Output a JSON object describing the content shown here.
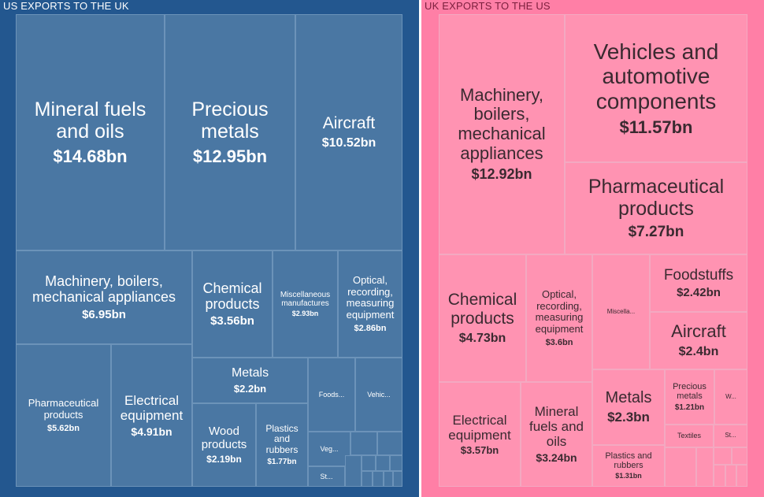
{
  "colors": {
    "us_background": "#23578f",
    "us_cell": "#4a77a3",
    "uk_background": "#ff7fa6",
    "uk_cell": "#ff93b2"
  },
  "chart_data": [
    {
      "type": "treemap",
      "title": "US EXPORTS TO THE UK",
      "items": [
        {
          "label": "Mineral fuels and oils",
          "value": 14.68,
          "value_label": "$14.68bn"
        },
        {
          "label": "Precious metals",
          "value": 12.95,
          "value_label": "$12.95bn"
        },
        {
          "label": "Aircraft",
          "value": 10.52,
          "value_label": "$10.52bn"
        },
        {
          "label": "Machinery, boilers, mechanical appliances",
          "value": 6.95,
          "value_label": "$6.95bn"
        },
        {
          "label": "Chemical products",
          "value": 3.56,
          "value_label": "$3.56bn"
        },
        {
          "label": "Miscellaneous manufactures",
          "value": 2.93,
          "value_label": "$2.93bn"
        },
        {
          "label": "Optical, recording, measuring equipment",
          "value": 2.86,
          "value_label": "$2.86bn"
        },
        {
          "label": "Pharmaceutical products",
          "value": 5.62,
          "value_label": "$5.62bn"
        },
        {
          "label": "Electrical equipment",
          "value": 4.91,
          "value_label": "$4.91bn"
        },
        {
          "label": "Metals",
          "value": 2.2,
          "value_label": "$2.2bn"
        },
        {
          "label": "Wood products",
          "value": 2.19,
          "value_label": "$2.19bn"
        },
        {
          "label": "Plastics and rubbers",
          "value": 1.77,
          "value_label": "$1.77bn"
        },
        {
          "label": "Foods...",
          "value": null,
          "value_label": ""
        },
        {
          "label": "Vehic...",
          "value": null,
          "value_label": ""
        },
        {
          "label": "Veg...",
          "value": null,
          "value_label": ""
        },
        {
          "label": "St...",
          "value": null,
          "value_label": ""
        }
      ]
    },
    {
      "type": "treemap",
      "title": "UK EXPORTS TO THE US",
      "items": [
        {
          "label": "Machinery, boilers, mechanical appliances",
          "value": 12.92,
          "value_label": "$12.92bn"
        },
        {
          "label": "Vehicles and automotive components",
          "value": 11.57,
          "value_label": "$11.57bn"
        },
        {
          "label": "Pharmaceutical products",
          "value": 7.27,
          "value_label": "$7.27bn"
        },
        {
          "label": "Chemical products",
          "value": 4.73,
          "value_label": "$4.73bn"
        },
        {
          "label": "Optical, recording, measuring equipment",
          "value": 3.6,
          "value_label": "$3.6bn"
        },
        {
          "label": "Miscella...",
          "value": null,
          "value_label": ""
        },
        {
          "label": "Foodstuffs",
          "value": 2.42,
          "value_label": "$2.42bn"
        },
        {
          "label": "Aircraft",
          "value": 2.4,
          "value_label": "$2.4bn"
        },
        {
          "label": "Electrical equipment",
          "value": 3.57,
          "value_label": "$3.57bn"
        },
        {
          "label": "Mineral fuels and oils",
          "value": 3.24,
          "value_label": "$3.24bn"
        },
        {
          "label": "Metals",
          "value": 2.3,
          "value_label": "$2.3bn"
        },
        {
          "label": "Precious metals",
          "value": 1.21,
          "value_label": "$1.21bn"
        },
        {
          "label": "W...",
          "value": null,
          "value_label": ""
        },
        {
          "label": "Plastics and rubbers",
          "value": 1.31,
          "value_label": "$1.31bn"
        },
        {
          "label": "Textiles",
          "value": null,
          "value_label": ""
        },
        {
          "label": "St...",
          "value": null,
          "value_label": ""
        }
      ]
    }
  ]
}
